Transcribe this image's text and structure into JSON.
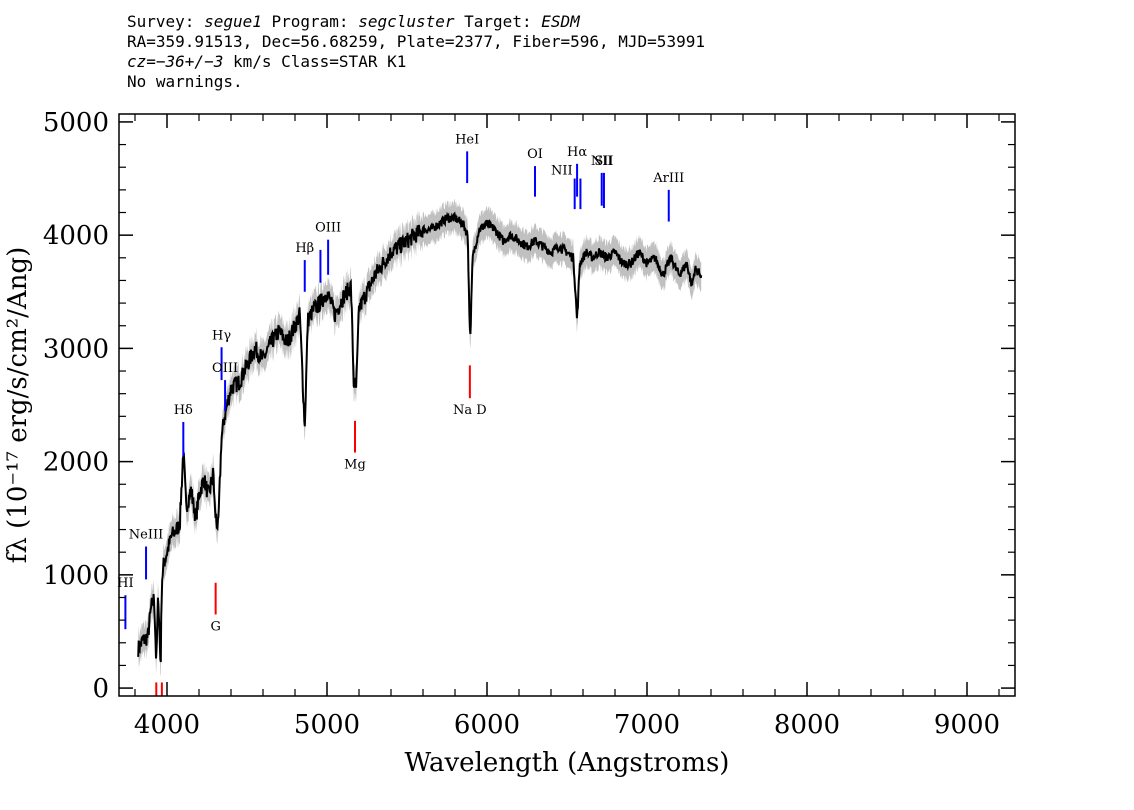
{
  "header": {
    "line1": {
      "survey_label": "Survey: ",
      "survey": "segue1",
      "program_label": " Program: ",
      "program": "segcluster",
      "target_label": " Target: ",
      "target": "ESDM"
    },
    "line2": "RA=359.91513, Dec=56.68259, Plate=2377, Fiber=596, MJD=53991",
    "line3": {
      "cz": "cz=−36+/−3",
      "rest": " km/s Class=STAR K1"
    },
    "line4": "No warnings."
  },
  "colors": {
    "spectrum": "#000000",
    "error_band": "#c0c0c0",
    "emission_line": "#0000ff",
    "absorption_line": "#ff0000",
    "axis": "#000000"
  },
  "chart_data": {
    "type": "line",
    "title": "",
    "xlabel": "Wavelength (Angstroms)",
    "ylabel": "fλ (10⁻¹⁷ erg/s/cm²/Ang)",
    "xlim": [
      3700,
      9300
    ],
    "ylim": [
      -70,
      5070
    ],
    "xticks": [
      4000,
      5000,
      6000,
      7000,
      8000,
      9000
    ],
    "yticks": [
      0,
      1000,
      2000,
      3000,
      4000,
      5000
    ],
    "xtick_labels": [
      "4000",
      "5000",
      "6000",
      "7000",
      "8000",
      "9000"
    ],
    "ytick_labels": [
      "0",
      "1000",
      "2000",
      "3000",
      "4000",
      "5000"
    ],
    "spectrum_range": [
      3820,
      7340
    ],
    "spectrum": {
      "x": [
        3820,
        3850,
        3880,
        3900,
        3920,
        3933,
        3945,
        3960,
        3968,
        3980,
        4000,
        4030,
        4060,
        4080,
        4102,
        4120,
        4150,
        4180,
        4200,
        4230,
        4260,
        4290,
        4300,
        4320,
        4340,
        4360,
        4400,
        4450,
        4500,
        4550,
        4600,
        4650,
        4700,
        4750,
        4800,
        4830,
        4861,
        4880,
        4920,
        4960,
        5000,
        5050,
        5100,
        5150,
        5167,
        5183,
        5200,
        5250,
        5300,
        5350,
        5400,
        5450,
        5500,
        5550,
        5600,
        5650,
        5700,
        5750,
        5800,
        5850,
        5880,
        5890,
        5896,
        5910,
        5950,
        6000,
        6050,
        6100,
        6150,
        6200,
        6250,
        6300,
        6350,
        6400,
        6450,
        6500,
        6540,
        6563,
        6580,
        6620,
        6660,
        6700,
        6750,
        6800,
        6850,
        6900,
        6950,
        7000,
        7050,
        7100,
        7150,
        7200,
        7250,
        7280,
        7300,
        7340
      ],
      "y": [
        350,
        420,
        450,
        700,
        800,
        200,
        850,
        180,
        950,
        1100,
        1200,
        1350,
        1400,
        1450,
        2100,
        1600,
        1750,
        1500,
        1700,
        1850,
        1700,
        1900,
        1550,
        1400,
        2200,
        2400,
        2650,
        2700,
        2850,
        3000,
        2900,
        3050,
        3150,
        3050,
        3200,
        3300,
        2300,
        3250,
        3350,
        3400,
        3500,
        3300,
        3450,
        3550,
        2700,
        2650,
        3350,
        3500,
        3650,
        3750,
        3850,
        3900,
        3950,
        4000,
        4050,
        4050,
        4100,
        4150,
        4150,
        4100,
        4000,
        3300,
        3100,
        3800,
        4050,
        4100,
        4050,
        3950,
        4000,
        3950,
        3900,
        3950,
        3900,
        3850,
        3900,
        3850,
        3800,
        3250,
        3750,
        3850,
        3800,
        3850,
        3800,
        3850,
        3750,
        3750,
        3850,
        3750,
        3800,
        3650,
        3800,
        3650,
        3750,
        3550,
        3700,
        3650
      ]
    },
    "error_band_width": 130,
    "lines": [
      {
        "label": "HI",
        "x": 3740,
        "y0": 520,
        "y1": 820,
        "type": "emission",
        "label_pos": "above"
      },
      {
        "label": "NeIII",
        "x": 3869,
        "y0": 960,
        "y1": 1250,
        "type": "emission",
        "label_pos": "above"
      },
      {
        "label": "Hδ",
        "x": 4102,
        "y0": 2050,
        "y1": 2350,
        "type": "emission",
        "label_pos": "above"
      },
      {
        "label": "Hγ",
        "x": 4341,
        "y0": 2720,
        "y1": 3010,
        "type": "emission",
        "label_pos": "above"
      },
      {
        "label": "OIII",
        "x": 4363,
        "y0": 2450,
        "y1": 2720,
        "type": "emission",
        "label_pos": "above"
      },
      {
        "label": "Hβ",
        "x": 4861,
        "y0": 3500,
        "y1": 3780,
        "type": "emission",
        "label_pos": "above"
      },
      {
        "label": "",
        "x": 4959,
        "y0": 3580,
        "y1": 3870,
        "type": "emission",
        "label_pos": "above"
      },
      {
        "label": "OIII",
        "x": 5007,
        "y0": 3650,
        "y1": 3960,
        "type": "emission",
        "label_pos": "above"
      },
      {
        "label": "HeI",
        "x": 5876,
        "y0": 4460,
        "y1": 4740,
        "type": "emission",
        "label_pos": "above"
      },
      {
        "label": "OI",
        "x": 6300,
        "y0": 4340,
        "y1": 4610,
        "type": "emission",
        "label_pos": "above"
      },
      {
        "label": "NII",
        "x": 6548,
        "y0": 4230,
        "y1": 4500,
        "type": "emission",
        "label_pos": "left"
      },
      {
        "label": "Hα",
        "x": 6563,
        "y0": 4340,
        "y1": 4630,
        "type": "emission",
        "label_pos": "above"
      },
      {
        "label": "",
        "x": 6584,
        "y0": 4230,
        "y1": 4500,
        "type": "emission",
        "label_pos": "above"
      },
      {
        "label": "NII",
        "x": 6717,
        "y0": 4260,
        "y1": 4550,
        "type": "emission",
        "label_pos": "above"
      },
      {
        "label": "SII",
        "x": 6731,
        "y0": 4240,
        "y1": 4550,
        "type": "emission",
        "label_pos": "above"
      },
      {
        "label": "ArIII",
        "x": 7136,
        "y0": 4120,
        "y1": 4400,
        "type": "emission",
        "label_pos": "above"
      },
      {
        "label": "",
        "x": 3933,
        "y0": -70,
        "y1": 50,
        "type": "absorption",
        "label_pos": "none"
      },
      {
        "label": "",
        "x": 3968,
        "y0": -70,
        "y1": 50,
        "type": "absorption",
        "label_pos": "none"
      },
      {
        "label": "G",
        "x": 4304,
        "y0": 650,
        "y1": 930,
        "type": "absorption",
        "label_pos": "below"
      },
      {
        "label": "Mg",
        "x": 5175,
        "y0": 2080,
        "y1": 2360,
        "type": "absorption",
        "label_pos": "below"
      },
      {
        "label": "Na  D",
        "x": 5893,
        "y0": 2560,
        "y1": 2850,
        "type": "absorption",
        "label_pos": "below"
      }
    ]
  }
}
